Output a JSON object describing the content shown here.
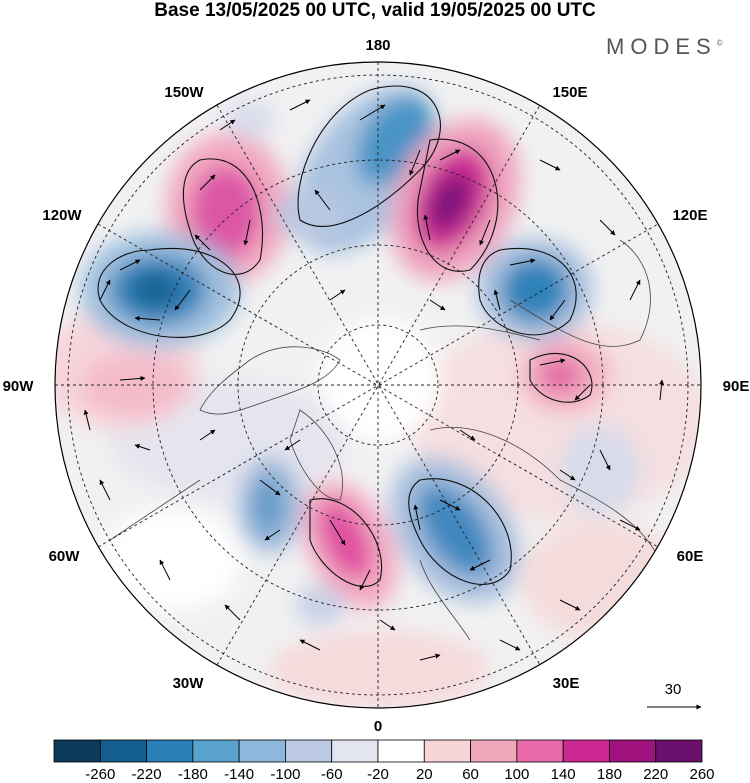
{
  "title": "Base 13/05/2025 00 UTC, valid 19/05/2025 00 UTC",
  "brand": "MODES",
  "brand_mark": "©",
  "longitude_labels": {
    "l180": "180",
    "l150e": "150E",
    "l120e": "120E",
    "l90e": "90E",
    "l60e": "60E",
    "l30e": "30E",
    "l0": "0",
    "l30w": "30W",
    "l60w": "60W",
    "l90w": "90W",
    "l120w": "120W",
    "l150w": "150W"
  },
  "reference_vector": "30",
  "colorbar": {
    "colors": [
      "#0e3a5b",
      "#145e8e",
      "#2b7fb8",
      "#5aa3cf",
      "#8db8dc",
      "#bcc9e2",
      "#e3e5f0",
      "#ffffff",
      "#f8d6d8",
      "#f1a7bb",
      "#e86aa8",
      "#cc2891",
      "#a0137f",
      "#6a0f6b"
    ],
    "labels": [
      "-260",
      "-220",
      "-180",
      "-140",
      "-100",
      "-60",
      "-20",
      "20",
      "60",
      "100",
      "140",
      "180",
      "220",
      "260"
    ]
  }
}
